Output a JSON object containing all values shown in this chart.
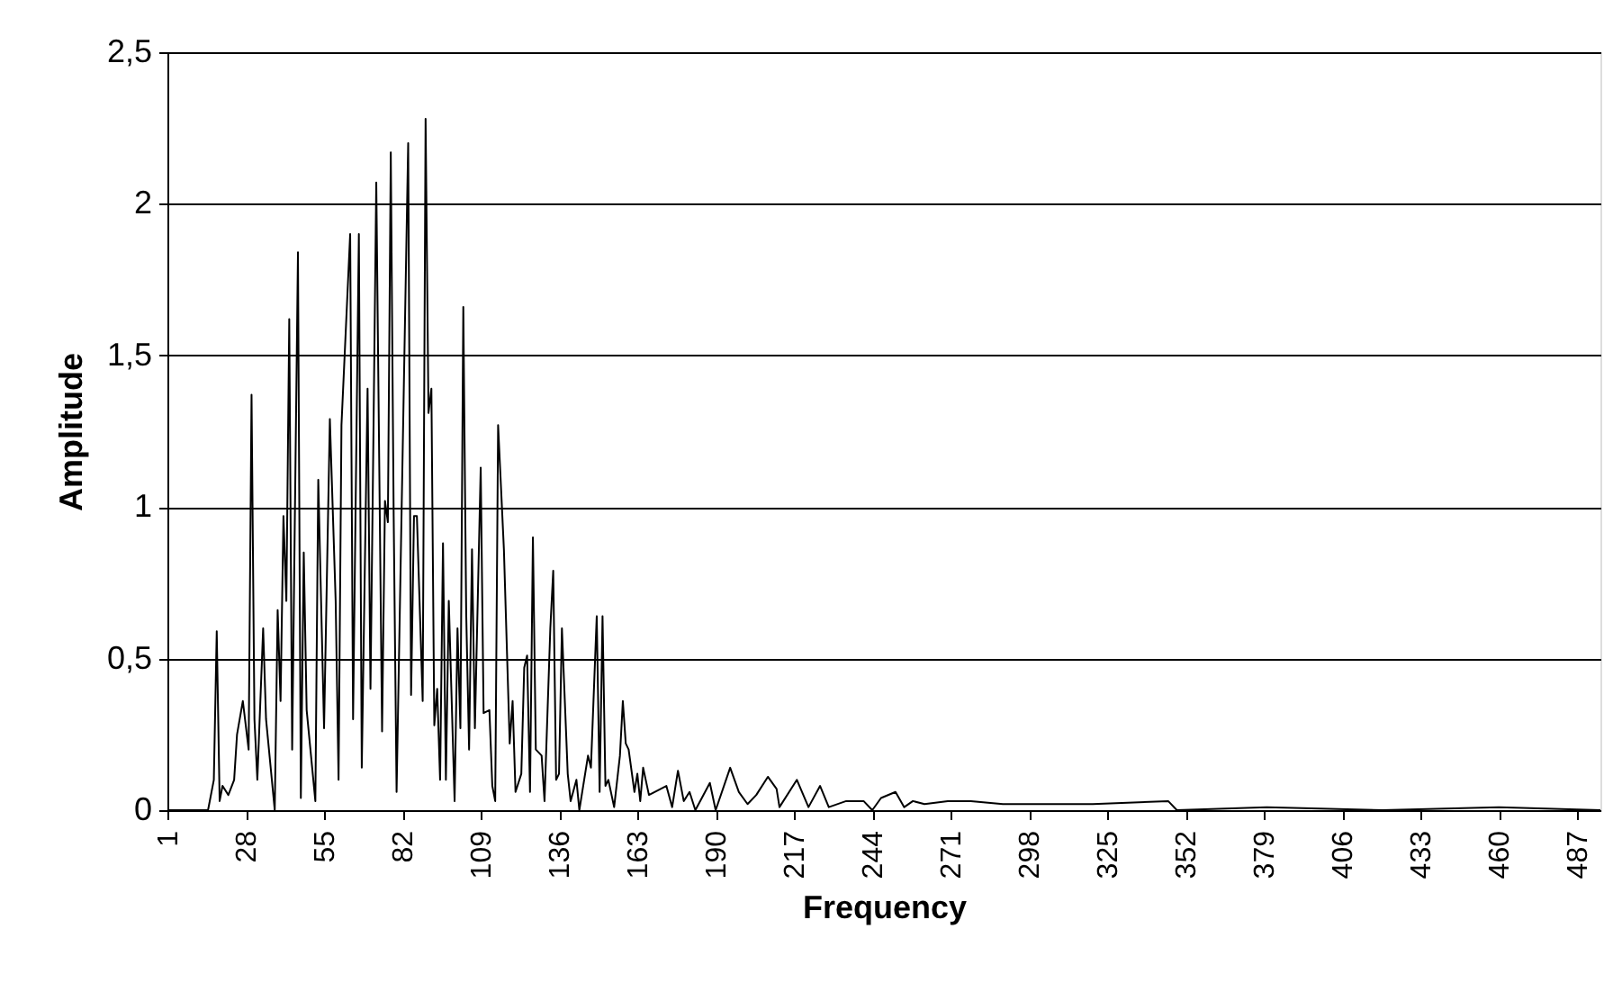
{
  "chart_data": {
    "type": "line",
    "xlabel": "Frequency",
    "ylabel": "Amplitude",
    "x": [
      1,
      15,
      17,
      18,
      19,
      20,
      22,
      24,
      25,
      27,
      29,
      30,
      31,
      32,
      34,
      35,
      38,
      39,
      40,
      41,
      42,
      43,
      44,
      46,
      47,
      48,
      49,
      52,
      53,
      55,
      57,
      59,
      60,
      61,
      64,
      65,
      67,
      68,
      70,
      71,
      72,
      73,
      75,
      76,
      77,
      78,
      79,
      80,
      84,
      85,
      86,
      87,
      89,
      90,
      91,
      92,
      93,
      94,
      95,
      96,
      97,
      98,
      100,
      101,
      102,
      103,
      104,
      105,
      106,
      107,
      109,
      110,
      112,
      113,
      114,
      115,
      117,
      119,
      120,
      121,
      123,
      124,
      125,
      126,
      127,
      128,
      130,
      131,
      133,
      134,
      135,
      136,
      137,
      139,
      140,
      142,
      143,
      146,
      147,
      149,
      150,
      151,
      152,
      153,
      155,
      157,
      158,
      159,
      160,
      162,
      163,
      164,
      165,
      167,
      173,
      175,
      177,
      179,
      181,
      183,
      188,
      190,
      195,
      198,
      201,
      204,
      208,
      211,
      212,
      218,
      222,
      226,
      229,
      235,
      241,
      244,
      247,
      252,
      255,
      258,
      262,
      270,
      278,
      289,
      303,
      320,
      346,
      349,
      380,
      420,
      460,
      495
    ],
    "series": [
      {
        "color": "#000000",
        "values": [
          0,
          0,
          0.1,
          0.59,
          0.03,
          0.08,
          0.05,
          0.1,
          0.25,
          0.36,
          0.2,
          1.37,
          0.3,
          0.1,
          0.6,
          0.3,
          0.0,
          0.66,
          0.36,
          0.97,
          0.69,
          1.62,
          0.2,
          1.84,
          0.04,
          0.85,
          0.33,
          0.03,
          1.09,
          0.27,
          1.29,
          0.69,
          0.1,
          1.27,
          1.9,
          0.3,
          1.9,
          0.14,
          1.39,
          0.4,
          1.22,
          2.07,
          0.26,
          1.02,
          0.95,
          2.17,
          0.97,
          0.06,
          2.2,
          0.38,
          0.97,
          0.97,
          0.36,
          2.28,
          1.31,
          1.39,
          0.28,
          0.4,
          0.1,
          0.88,
          0.1,
          0.69,
          0.03,
          0.6,
          0.27,
          1.66,
          0.65,
          0.2,
          0.86,
          0.27,
          1.13,
          0.32,
          0.33,
          0.08,
          0.03,
          1.27,
          0.86,
          0.22,
          0.36,
          0.06,
          0.12,
          0.47,
          0.51,
          0.06,
          0.9,
          0.2,
          0.18,
          0.03,
          0.6,
          0.79,
          0.1,
          0.12,
          0.6,
          0.12,
          0.03,
          0.1,
          0.0,
          0.18,
          0.14,
          0.64,
          0.06,
          0.64,
          0.08,
          0.1,
          0.01,
          0.18,
          0.36,
          0.22,
          0.2,
          0.06,
          0.12,
          0.03,
          0.14,
          0.05,
          0.08,
          0.01,
          0.13,
          0.03,
          0.06,
          0.0,
          0.09,
          0.0,
          0.14,
          0.06,
          0.02,
          0.05,
          0.11,
          0.07,
          0.01,
          0.1,
          0.01,
          0.08,
          0.01,
          0.03,
          0.03,
          0.0,
          0.04,
          0.06,
          0.01,
          0.03,
          0.02,
          0.03,
          0.03,
          0.02,
          0.02,
          0.02,
          0.03,
          0.0,
          0.01,
          0.0,
          0.01,
          0.0
        ]
      }
    ],
    "xlim": [
      1,
      495
    ],
    "xticks": [
      1,
      28,
      55,
      82,
      109,
      136,
      163,
      190,
      217,
      244,
      271,
      298,
      325,
      352,
      379,
      406,
      433,
      460,
      487
    ],
    "ylim": [
      0,
      2.5
    ],
    "yticks": [
      0,
      {
        "value": 0.5,
        "label": "0,5"
      },
      1,
      {
        "value": 1.5,
        "label": "1,5"
      },
      2,
      {
        "value": 2.5,
        "label": "2,5"
      }
    ],
    "grid": "y",
    "marker": "none",
    "line_style": "solid"
  }
}
